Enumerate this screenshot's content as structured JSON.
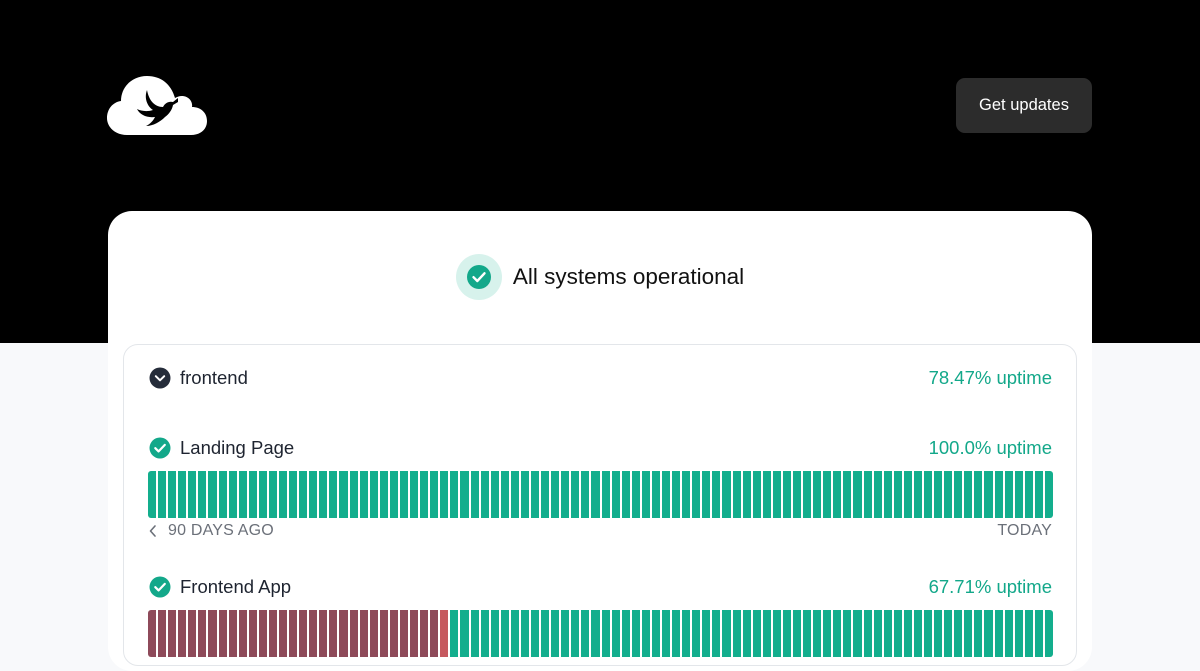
{
  "header": {
    "logo_icon": "cloud-bird-logo",
    "updates_label": "Get updates"
  },
  "summary": {
    "icon": "check-circle-icon",
    "title": "All systems operational",
    "accent_color": "#13a88a"
  },
  "group": {
    "icon": "chevron-down-circle-icon",
    "name": "frontend",
    "uptime_label": "78.47% uptime"
  },
  "services": [
    {
      "icon": "check-circle-icon",
      "name": "Landing Page",
      "uptime_label": "100.0% uptime",
      "days": {
        "outage": 0,
        "partial": 0,
        "operational": 90
      }
    },
    {
      "icon": "check-circle-icon",
      "name": "Frontend App",
      "uptime_label": "67.71% uptime",
      "days": {
        "outage": 29,
        "partial": 1,
        "operational": 60
      }
    }
  ],
  "timeline": {
    "prev_icon": "chevron-left-icon",
    "start_label": "90 DAYS AGO",
    "end_label": "TODAY"
  },
  "colors": {
    "operational": "#13ae8d",
    "outage": "#8e4a5a",
    "partial": "#c6595f"
  }
}
